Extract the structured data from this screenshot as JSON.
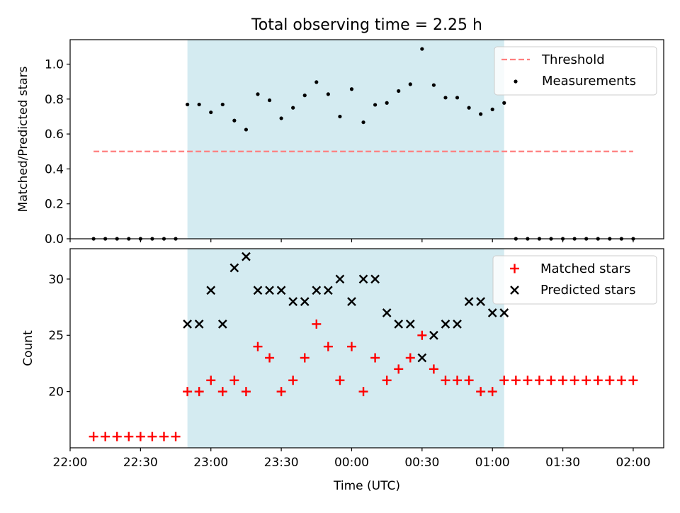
{
  "title": "Total observing time = 2.25 h",
  "chart_data": [
    {
      "type": "scatter",
      "ylabel": "Matched/Predicted stars",
      "xlim": [
        "22:00",
        "02:13"
      ],
      "ylim": [
        0,
        1.14
      ],
      "yticks": [
        "0.0",
        "0.2",
        "0.4",
        "0.6",
        "0.8",
        "1.0"
      ],
      "shaded_region": {
        "x": [
          "22:50",
          "01:05"
        ],
        "color": "#d4ebf1"
      },
      "threshold": {
        "name": "Threshold",
        "value": 0.5,
        "x": [
          "22:10",
          "02:00"
        ],
        "color": "#ff7f7f",
        "style": "dashed"
      },
      "series": [
        {
          "name": "Measurements",
          "marker": "dot",
          "color": "#000000",
          "x": [
            "22:10",
            "22:15",
            "22:20",
            "22:25",
            "22:30",
            "22:35",
            "22:40",
            "22:45",
            "22:50",
            "22:55",
            "23:00",
            "23:05",
            "23:10",
            "23:15",
            "23:20",
            "23:25",
            "23:30",
            "23:35",
            "23:40",
            "23:45",
            "23:50",
            "23:55",
            "00:00",
            "00:05",
            "00:10",
            "00:15",
            "00:20",
            "00:25",
            "00:30",
            "00:35",
            "00:40",
            "00:45",
            "00:50",
            "00:55",
            "01:00",
            "01:05",
            "01:10",
            "01:15",
            "01:20",
            "01:25",
            "01:30",
            "01:35",
            "01:40",
            "01:45",
            "01:50",
            "01:55",
            "02:00"
          ],
          "values": [
            0,
            0,
            0,
            0,
            0,
            0,
            0,
            0,
            0.769,
            0.769,
            0.724,
            0.769,
            0.677,
            0.625,
            0.828,
            0.793,
            0.69,
            0.75,
            0.821,
            0.897,
            0.828,
            0.7,
            0.857,
            0.667,
            0.767,
            0.778,
            0.846,
            0.885,
            1.087,
            0.88,
            0.808,
            0.808,
            0.75,
            0.714,
            0.741,
            0.778,
            0,
            0,
            0,
            0,
            0,
            0,
            0,
            0,
            0,
            0,
            0
          ]
        }
      ],
      "legend": "top-right"
    },
    {
      "type": "scatter",
      "xlabel": "Time (UTC)",
      "ylabel": "Count",
      "xlim": [
        "22:00",
        "02:13"
      ],
      "ylim": [
        15,
        32.7
      ],
      "yticks": [
        "20",
        "25",
        "30"
      ],
      "xticks": [
        "22:00",
        "22:30",
        "23:00",
        "23:30",
        "00:00",
        "00:30",
        "01:00",
        "01:30",
        "02:00"
      ],
      "shaded_region": {
        "x": [
          "22:50",
          "01:05"
        ],
        "color": "#d4ebf1"
      },
      "series": [
        {
          "name": "Matched stars",
          "marker": "plus",
          "color": "#ff0000",
          "x": [
            "22:10",
            "22:15",
            "22:20",
            "22:25",
            "22:30",
            "22:35",
            "22:40",
            "22:45",
            "22:50",
            "22:55",
            "23:00",
            "23:05",
            "23:10",
            "23:15",
            "23:20",
            "23:25",
            "23:30",
            "23:35",
            "23:40",
            "23:45",
            "23:50",
            "23:55",
            "00:00",
            "00:05",
            "00:10",
            "00:15",
            "00:20",
            "00:25",
            "00:30",
            "00:35",
            "00:40",
            "00:45",
            "00:50",
            "00:55",
            "01:00",
            "01:05",
            "01:10",
            "01:15",
            "01:20",
            "01:25",
            "01:30",
            "01:35",
            "01:40",
            "01:45",
            "01:50",
            "01:55",
            "02:00"
          ],
          "values": [
            16,
            16,
            16,
            16,
            16,
            16,
            16,
            16,
            20,
            20,
            21,
            20,
            21,
            20,
            24,
            23,
            20,
            21,
            23,
            26,
            24,
            21,
            24,
            20,
            23,
            21,
            22,
            23,
            25,
            22,
            21,
            21,
            21,
            20,
            20,
            21,
            21,
            21,
            21,
            21,
            21,
            21,
            21,
            21,
            21,
            21,
            21
          ]
        },
        {
          "name": "Predicted stars",
          "marker": "x",
          "color": "#000000",
          "x": [
            "22:50",
            "22:55",
            "23:00",
            "23:05",
            "23:10",
            "23:15",
            "23:20",
            "23:25",
            "23:30",
            "23:35",
            "23:40",
            "23:45",
            "23:50",
            "23:55",
            "00:00",
            "00:05",
            "00:10",
            "00:15",
            "00:20",
            "00:25",
            "00:30",
            "00:35",
            "00:40",
            "00:45",
            "00:50",
            "00:55",
            "01:00",
            "01:05"
          ],
          "values": [
            26,
            26,
            29,
            26,
            31,
            32,
            29,
            29,
            29,
            28,
            28,
            29,
            29,
            30,
            28,
            30,
            30,
            27,
            26,
            26,
            23,
            25,
            26,
            26,
            28,
            28,
            27,
            27
          ]
        }
      ],
      "legend": "top-right"
    }
  ]
}
